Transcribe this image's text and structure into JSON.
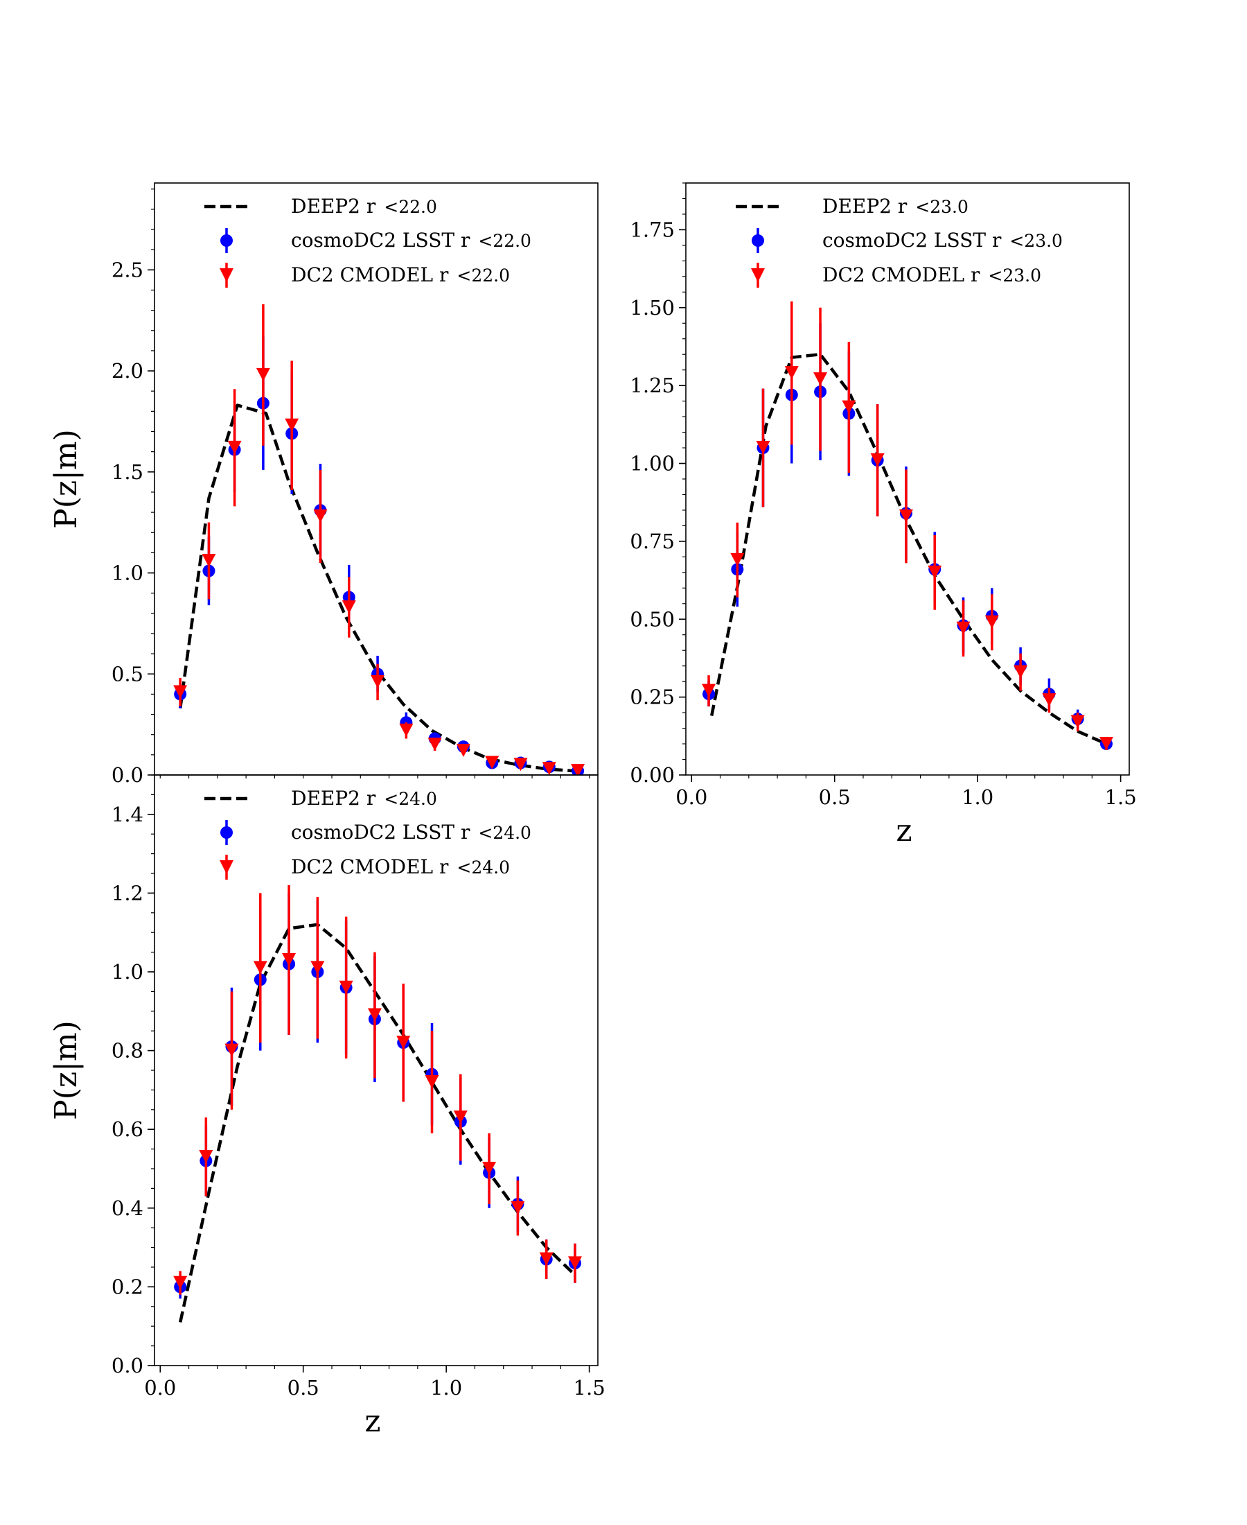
{
  "chart_data": [
    {
      "type": "scatter",
      "panel": "top-left",
      "xlim": [
        -0.02,
        1.53
      ],
      "ylim": [
        0,
        2.93
      ],
      "yticks": [
        0.0,
        0.5,
        1.0,
        1.5,
        2.0,
        2.5
      ],
      "ytick_labels": [
        "0.0",
        "0.5",
        "1.0",
        "1.5",
        "2.0",
        "2.5"
      ],
      "yminor_step": 0.1,
      "xticks": [],
      "xtick_labels": [],
      "xminor_step": 0.1,
      "xlabel": "",
      "ylabel": "P(z|m)",
      "legend_placement": "top-center",
      "legend": [
        {
          "main": "DEEP2 r",
          "cut": "<22.0"
        },
        {
          "main": "cosmoDC2 LSST r",
          "cut": "<22.0"
        },
        {
          "main": "DC2 CMODEL r",
          "cut": "<22.0"
        }
      ],
      "line": {
        "name": "DEEP2 r <22.0",
        "x": [
          0.07,
          0.17,
          0.27,
          0.37,
          0.45,
          0.55,
          0.65,
          0.75,
          0.85,
          0.95,
          1.05,
          1.15,
          1.25,
          1.35,
          1.45
        ],
        "y": [
          0.33,
          1.37,
          1.83,
          1.79,
          1.45,
          1.1,
          0.78,
          0.53,
          0.35,
          0.22,
          0.14,
          0.08,
          0.05,
          0.03,
          0.02
        ]
      },
      "points_blue": {
        "name": "cosmoDC2 LSST r <22.0",
        "x": [
          0.07,
          0.17,
          0.26,
          0.36,
          0.46,
          0.56,
          0.66,
          0.76,
          0.86,
          0.96,
          1.06,
          1.16,
          1.26,
          1.36,
          1.46
        ],
        "y": [
          0.4,
          1.01,
          1.61,
          1.84,
          1.69,
          1.31,
          0.88,
          0.5,
          0.26,
          0.18,
          0.14,
          0.06,
          0.06,
          0.04,
          0.02
        ],
        "err": [
          0.07,
          0.17,
          0.21,
          0.33,
          0.3,
          0.23,
          0.16,
          0.09,
          0.05,
          0.03,
          0.03,
          0.02,
          0.02,
          0.02,
          0.01
        ]
      },
      "points_red": {
        "name": "DC2 CMODEL r <22.0",
        "x": [
          0.07,
          0.17,
          0.26,
          0.36,
          0.46,
          0.56,
          0.66,
          0.76,
          0.86,
          0.96,
          1.06,
          1.16,
          1.26,
          1.36,
          1.46
        ],
        "y": [
          0.41,
          1.06,
          1.62,
          1.98,
          1.73,
          1.28,
          0.83,
          0.46,
          0.22,
          0.15,
          0.12,
          0.06,
          0.05,
          0.03,
          0.02
        ],
        "err": [
          0.07,
          0.19,
          0.29,
          0.35,
          0.32,
          0.23,
          0.15,
          0.09,
          0.04,
          0.03,
          0.02,
          0.01,
          0.01,
          0.01,
          0.01
        ]
      }
    },
    {
      "type": "scatter",
      "panel": "top-right",
      "xlim": [
        -0.02,
        1.53
      ],
      "ylim": [
        0,
        1.9
      ],
      "yticks": [
        0.0,
        0.25,
        0.5,
        0.75,
        1.0,
        1.25,
        1.5,
        1.75
      ],
      "ytick_labels": [
        "0.00",
        "0.25",
        "0.50",
        "0.75",
        "1.00",
        "1.25",
        "1.50",
        "1.75"
      ],
      "yminor_step": 0.05,
      "xticks": [
        0.0,
        0.5,
        1.0,
        1.5
      ],
      "xtick_labels": [
        "0.0",
        "0.5",
        "1.0",
        "1.5"
      ],
      "xminor_step": 0.1,
      "xlabel": "z",
      "ylabel": "",
      "legend_placement": "top-center",
      "legend": [
        {
          "main": "DEEP2 r",
          "cut": "<23.0"
        },
        {
          "main": "cosmoDC2 LSST r",
          "cut": "<23.0"
        },
        {
          "main": "DC2 CMODEL r",
          "cut": "<23.0"
        }
      ],
      "line": {
        "name": "DEEP2 r <23.0",
        "x": [
          0.07,
          0.17,
          0.26,
          0.35,
          0.45,
          0.55,
          0.65,
          0.75,
          0.85,
          0.95,
          1.05,
          1.15,
          1.25,
          1.35,
          1.45
        ],
        "y": [
          0.19,
          0.65,
          1.12,
          1.34,
          1.35,
          1.23,
          1.03,
          0.82,
          0.64,
          0.5,
          0.37,
          0.27,
          0.2,
          0.14,
          0.1
        ]
      },
      "points_blue": {
        "name": "cosmoDC2 LSST r <23.0",
        "x": [
          0.06,
          0.16,
          0.25,
          0.35,
          0.45,
          0.55,
          0.65,
          0.75,
          0.85,
          0.95,
          1.05,
          1.15,
          1.25,
          1.35,
          1.45
        ],
        "y": [
          0.26,
          0.66,
          1.05,
          1.22,
          1.23,
          1.16,
          1.01,
          0.84,
          0.66,
          0.48,
          0.51,
          0.35,
          0.26,
          0.18,
          0.1
        ],
        "err": [
          0.04,
          0.12,
          0.19,
          0.22,
          0.22,
          0.2,
          0.18,
          0.15,
          0.12,
          0.09,
          0.09,
          0.06,
          0.05,
          0.03,
          0.02
        ]
      },
      "points_red": {
        "name": "DC2 CMODEL r <23.0",
        "x": [
          0.06,
          0.16,
          0.25,
          0.35,
          0.45,
          0.55,
          0.65,
          0.75,
          0.85,
          0.95,
          1.05,
          1.15,
          1.25,
          1.35,
          1.45
        ],
        "y": [
          0.27,
          0.69,
          1.05,
          1.29,
          1.27,
          1.18,
          1.01,
          0.83,
          0.65,
          0.47,
          0.49,
          0.33,
          0.24,
          0.17,
          0.1
        ],
        "err": [
          0.05,
          0.12,
          0.19,
          0.23,
          0.23,
          0.21,
          0.18,
          0.15,
          0.12,
          0.09,
          0.09,
          0.06,
          0.04,
          0.03,
          0.02
        ]
      }
    },
    {
      "type": "scatter",
      "panel": "bottom-left",
      "xlim": [
        -0.02,
        1.53
      ],
      "ylim": [
        0,
        1.5
      ],
      "yticks": [
        0.0,
        0.2,
        0.4,
        0.6,
        0.8,
        1.0,
        1.2,
        1.4
      ],
      "ytick_labels": [
        "0.0",
        "0.2",
        "0.4",
        "0.6",
        "0.8",
        "1.0",
        "1.2",
        "1.4"
      ],
      "yminor_step": 0.05,
      "xticks": [
        0.0,
        0.5,
        1.0,
        1.5
      ],
      "xtick_labels": [
        "0.0",
        "0.5",
        "1.0",
        "1.5"
      ],
      "xminor_step": 0.1,
      "xlabel": "z",
      "ylabel": "P(z|m)",
      "legend_placement": "top-center",
      "legend": [
        {
          "main": "DEEP2 r",
          "cut": "<24.0"
        },
        {
          "main": "cosmoDC2 LSST r",
          "cut": "<24.0"
        },
        {
          "main": "DC2 CMODEL r",
          "cut": "<24.0"
        }
      ],
      "line": {
        "name": "DEEP2 r <24.0",
        "x": [
          0.07,
          0.17,
          0.27,
          0.35,
          0.45,
          0.55,
          0.65,
          0.75,
          0.85,
          0.95,
          1.05,
          1.15,
          1.25,
          1.35,
          1.45
        ],
        "y": [
          0.11,
          0.44,
          0.76,
          0.97,
          1.11,
          1.12,
          1.06,
          0.95,
          0.84,
          0.72,
          0.6,
          0.49,
          0.39,
          0.3,
          0.23
        ]
      },
      "points_blue": {
        "name": "cosmoDC2 LSST r <24.0",
        "x": [
          0.07,
          0.16,
          0.25,
          0.35,
          0.45,
          0.55,
          0.65,
          0.75,
          0.85,
          0.95,
          1.05,
          1.15,
          1.25,
          1.35,
          1.45
        ],
        "y": [
          0.2,
          0.52,
          0.81,
          0.98,
          1.02,
          1.0,
          0.96,
          0.88,
          0.82,
          0.74,
          0.62,
          0.49,
          0.41,
          0.27,
          0.26
        ],
        "err": [
          0.03,
          0.09,
          0.15,
          0.18,
          0.18,
          0.18,
          0.17,
          0.16,
          0.15,
          0.13,
          0.11,
          0.09,
          0.07,
          0.05,
          0.05
        ]
      },
      "points_red": {
        "name": "DC2 CMODEL r <24.0",
        "x": [
          0.07,
          0.16,
          0.25,
          0.35,
          0.45,
          0.55,
          0.65,
          0.75,
          0.85,
          0.95,
          1.05,
          1.15,
          1.25,
          1.35,
          1.45
        ],
        "y": [
          0.21,
          0.53,
          0.8,
          1.01,
          1.03,
          1.01,
          0.96,
          0.89,
          0.82,
          0.72,
          0.63,
          0.5,
          0.4,
          0.27,
          0.26
        ],
        "err": [
          0.03,
          0.1,
          0.15,
          0.19,
          0.19,
          0.18,
          0.18,
          0.16,
          0.15,
          0.13,
          0.11,
          0.09,
          0.07,
          0.05,
          0.05
        ]
      }
    }
  ]
}
